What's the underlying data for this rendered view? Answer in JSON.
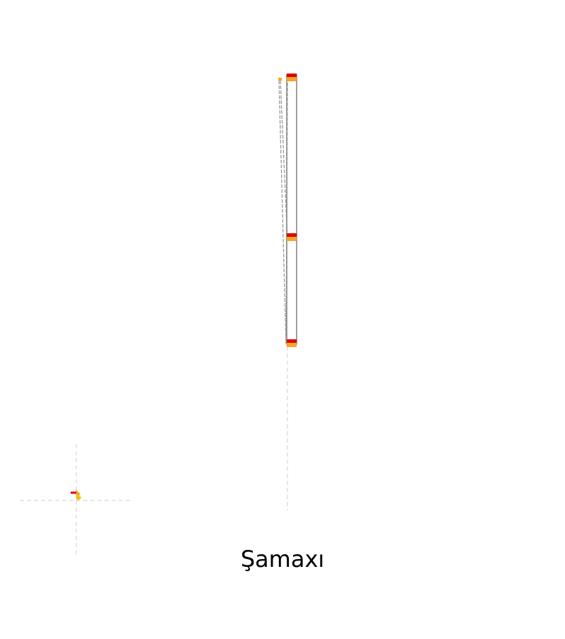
{
  "title": "Şamaxı",
  "colors": {
    "marker_red": "#e00000",
    "marker_orange": "#f5a623",
    "outline": "#888888",
    "dashed": "#999999",
    "guide": "#d7d7d7",
    "inset_yellow": "#f2c400"
  },
  "icons": {
    "tick_marks": "red-orange-bar",
    "locator": "small-flag-glyph"
  }
}
